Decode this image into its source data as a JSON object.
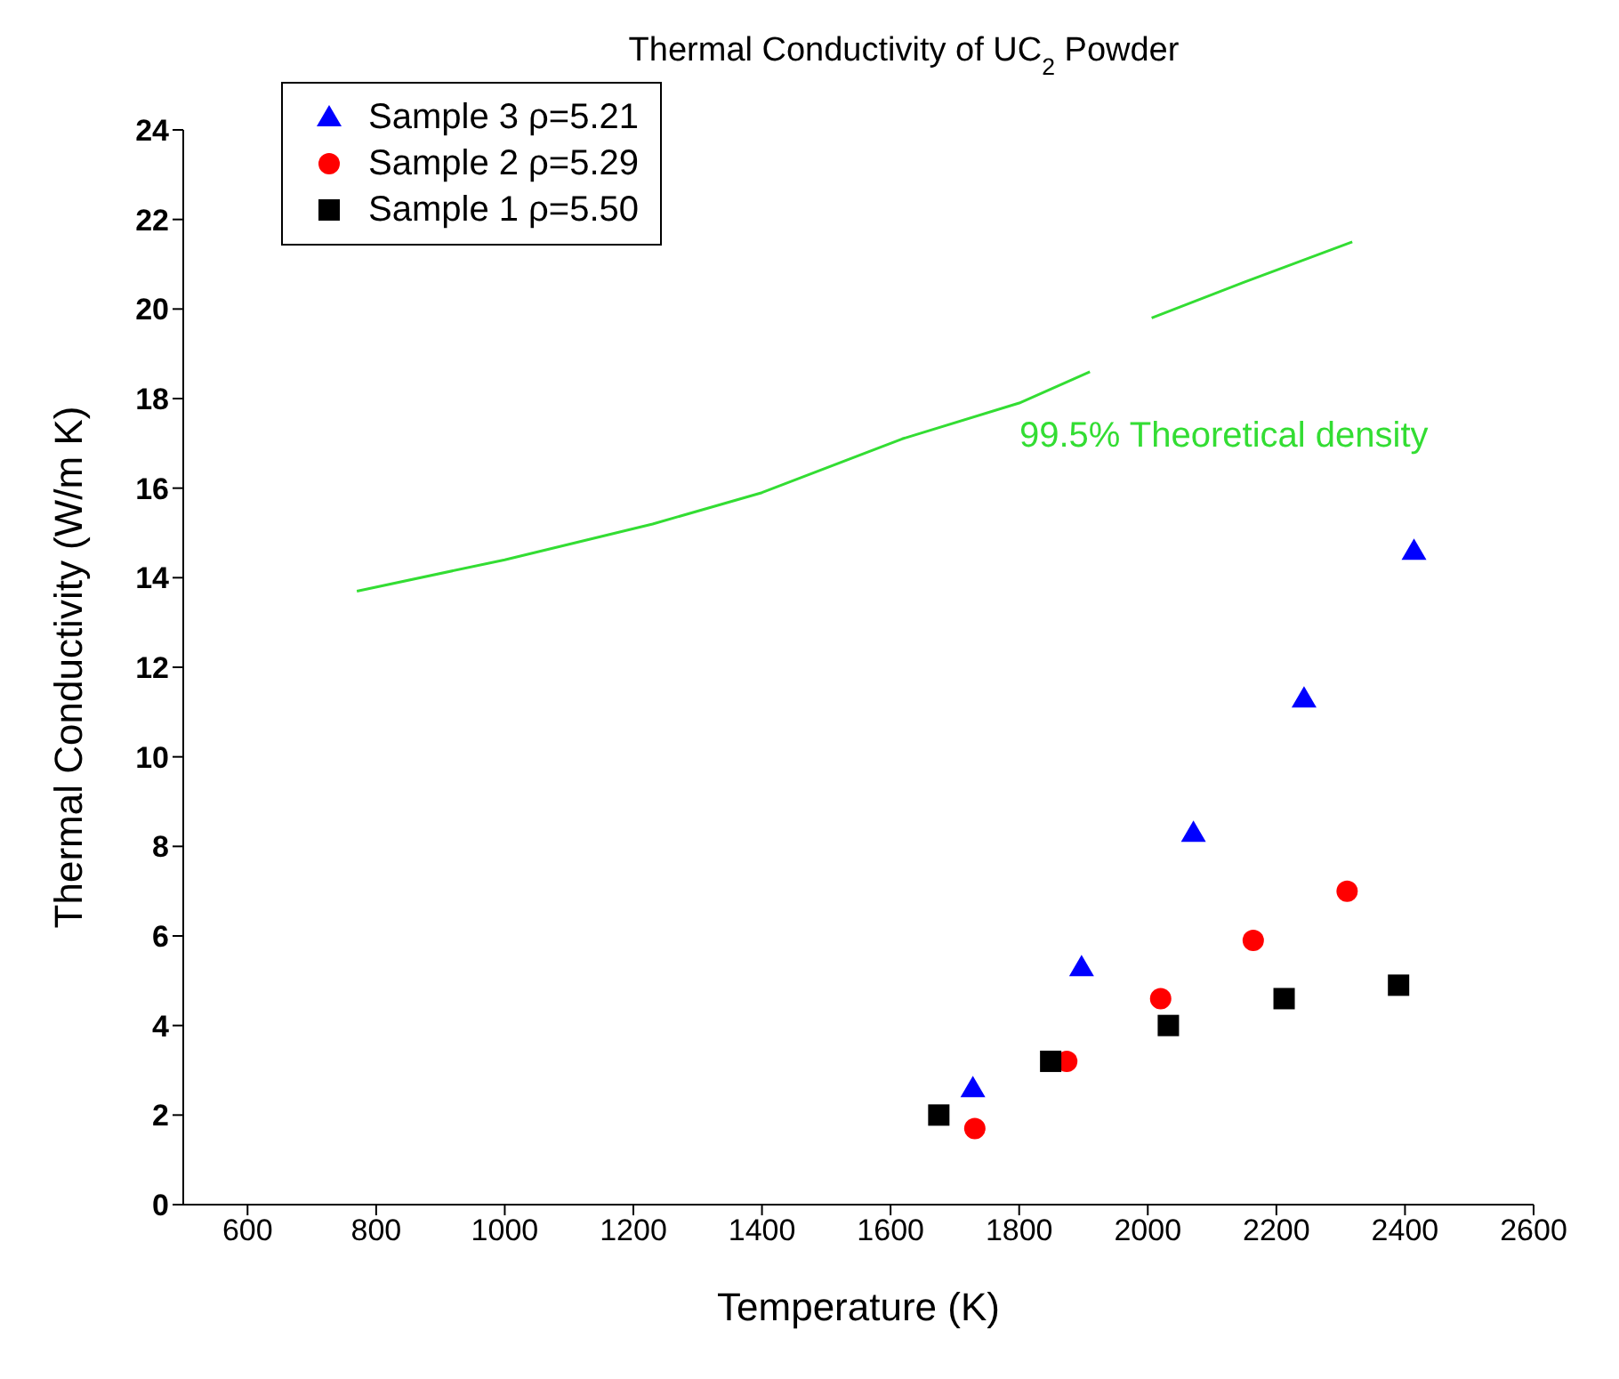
{
  "chart_data": {
    "type": "scatter",
    "title": "Thermal Conductivity of UC$_{2}$ Powder",
    "xlabel": "Temperature (K)",
    "ylabel": "Thermal Conductivity (W/m K)",
    "xlim": [
      500,
      2600
    ],
    "xticks": [
      600,
      800,
      1000,
      1200,
      1400,
      1600,
      1800,
      2000,
      2200,
      2400,
      2600
    ],
    "ylim": [
      0,
      24
    ],
    "yticks": [
      0,
      2,
      4,
      6,
      8,
      10,
      12,
      14,
      16,
      18,
      20,
      22,
      24
    ],
    "legend": "top left",
    "series": [
      {
        "name": "Sample 3  ρ=5.21",
        "color": "#0000ff",
        "marker": "triangle",
        "x": [
          1728,
          1897,
          2071,
          2243,
          2414
        ],
        "values": [
          2.6,
          5.3,
          8.3,
          11.3,
          14.6
        ]
      },
      {
        "name": "Sample 2  ρ=5.29",
        "color": "#ff0000",
        "marker": "circle",
        "x": [
          1731,
          1874,
          2020,
          2164,
          2310
        ],
        "values": [
          1.7,
          3.2,
          4.6,
          5.9,
          7.0
        ]
      },
      {
        "name": "Sample 1  ρ=5.50",
        "color": "#000000",
        "marker": "square",
        "x": [
          1675,
          1849,
          2032,
          2212,
          2390
        ],
        "values": [
          2.0,
          3.2,
          4.0,
          4.6,
          4.9
        ]
      },
      {
        "type": "line",
        "color": "#33dd33",
        "marker": "none",
        "x": [
          770,
          1000,
          1230,
          1400,
          1618,
          1800,
          1910,
          1960,
          2006,
          2150,
          2318
        ],
        "values": [
          13.7,
          14.4,
          15.2,
          15.9,
          17.1,
          17.9,
          18.6,
          null,
          19.8,
          20.6,
          21.5
        ]
      }
    ],
    "annotations": [
      "99.5% Theoretical density"
    ]
  }
}
